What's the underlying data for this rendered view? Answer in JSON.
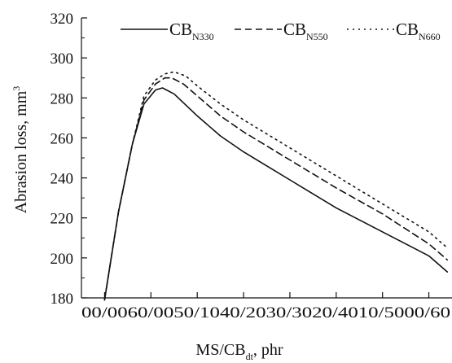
{
  "chart_data": {
    "type": "line",
    "title": "",
    "xlabel_main": "MS/CB",
    "xlabel_sub": "dt",
    "xlabel_tail": ", phr",
    "ylabel_main": "Abrasion loss, mm",
    "ylabel_sup": "3",
    "categories": [
      "00/00",
      "60/00",
      "50/10",
      "40/20",
      "30/30",
      "20/40",
      "10/50",
      "00/60"
    ],
    "tick_text": "00/0060/0050/1040/2030/3020/4010/5000/60",
    "ylim": [
      180,
      320
    ],
    "yticks": [
      180,
      200,
      220,
      240,
      260,
      280,
      300,
      320
    ],
    "grid": false,
    "legend_position": "top",
    "series": [
      {
        "name_main": "CB",
        "name_sub": "N330",
        "line_style": "solid",
        "color": "#111111",
        "points": [
          [
            0,
            179
          ],
          [
            0.3,
            223
          ],
          [
            0.6,
            257
          ],
          [
            0.85,
            277
          ],
          [
            1.1,
            284
          ],
          [
            1.25,
            285
          ],
          [
            1.5,
            282
          ],
          [
            2,
            271
          ],
          [
            2.5,
            261
          ],
          [
            3,
            253
          ],
          [
            3.5,
            246
          ],
          [
            4,
            239
          ],
          [
            5,
            225
          ],
          [
            6,
            213
          ],
          [
            7,
            201
          ],
          [
            7.4,
            193
          ]
        ]
      },
      {
        "name_main": "CB",
        "name_sub": "N550",
        "line_style": "dashed",
        "color": "#111111",
        "points": [
          [
            0,
            179
          ],
          [
            0.3,
            223
          ],
          [
            0.6,
            257
          ],
          [
            0.85,
            279
          ],
          [
            1.1,
            287
          ],
          [
            1.3,
            290
          ],
          [
            1.45,
            290
          ],
          [
            1.7,
            287
          ],
          [
            2,
            281
          ],
          [
            2.5,
            271
          ],
          [
            3,
            263
          ],
          [
            4,
            249
          ],
          [
            5,
            235
          ],
          [
            6,
            222
          ],
          [
            7,
            207
          ],
          [
            7.4,
            199
          ]
        ]
      },
      {
        "name_main": "CB",
        "name_sub": "N660",
        "line_style": "dotted",
        "color": "#111111",
        "points": [
          [
            0,
            179
          ],
          [
            0.3,
            223
          ],
          [
            0.6,
            257
          ],
          [
            0.85,
            281
          ],
          [
            1.1,
            289
          ],
          [
            1.3,
            292
          ],
          [
            1.5,
            293
          ],
          [
            1.75,
            291
          ],
          [
            2,
            286
          ],
          [
            2.5,
            277
          ],
          [
            3,
            269
          ],
          [
            4,
            255
          ],
          [
            5,
            241
          ],
          [
            6,
            227
          ],
          [
            7,
            213
          ],
          [
            7.4,
            205
          ]
        ]
      }
    ]
  }
}
